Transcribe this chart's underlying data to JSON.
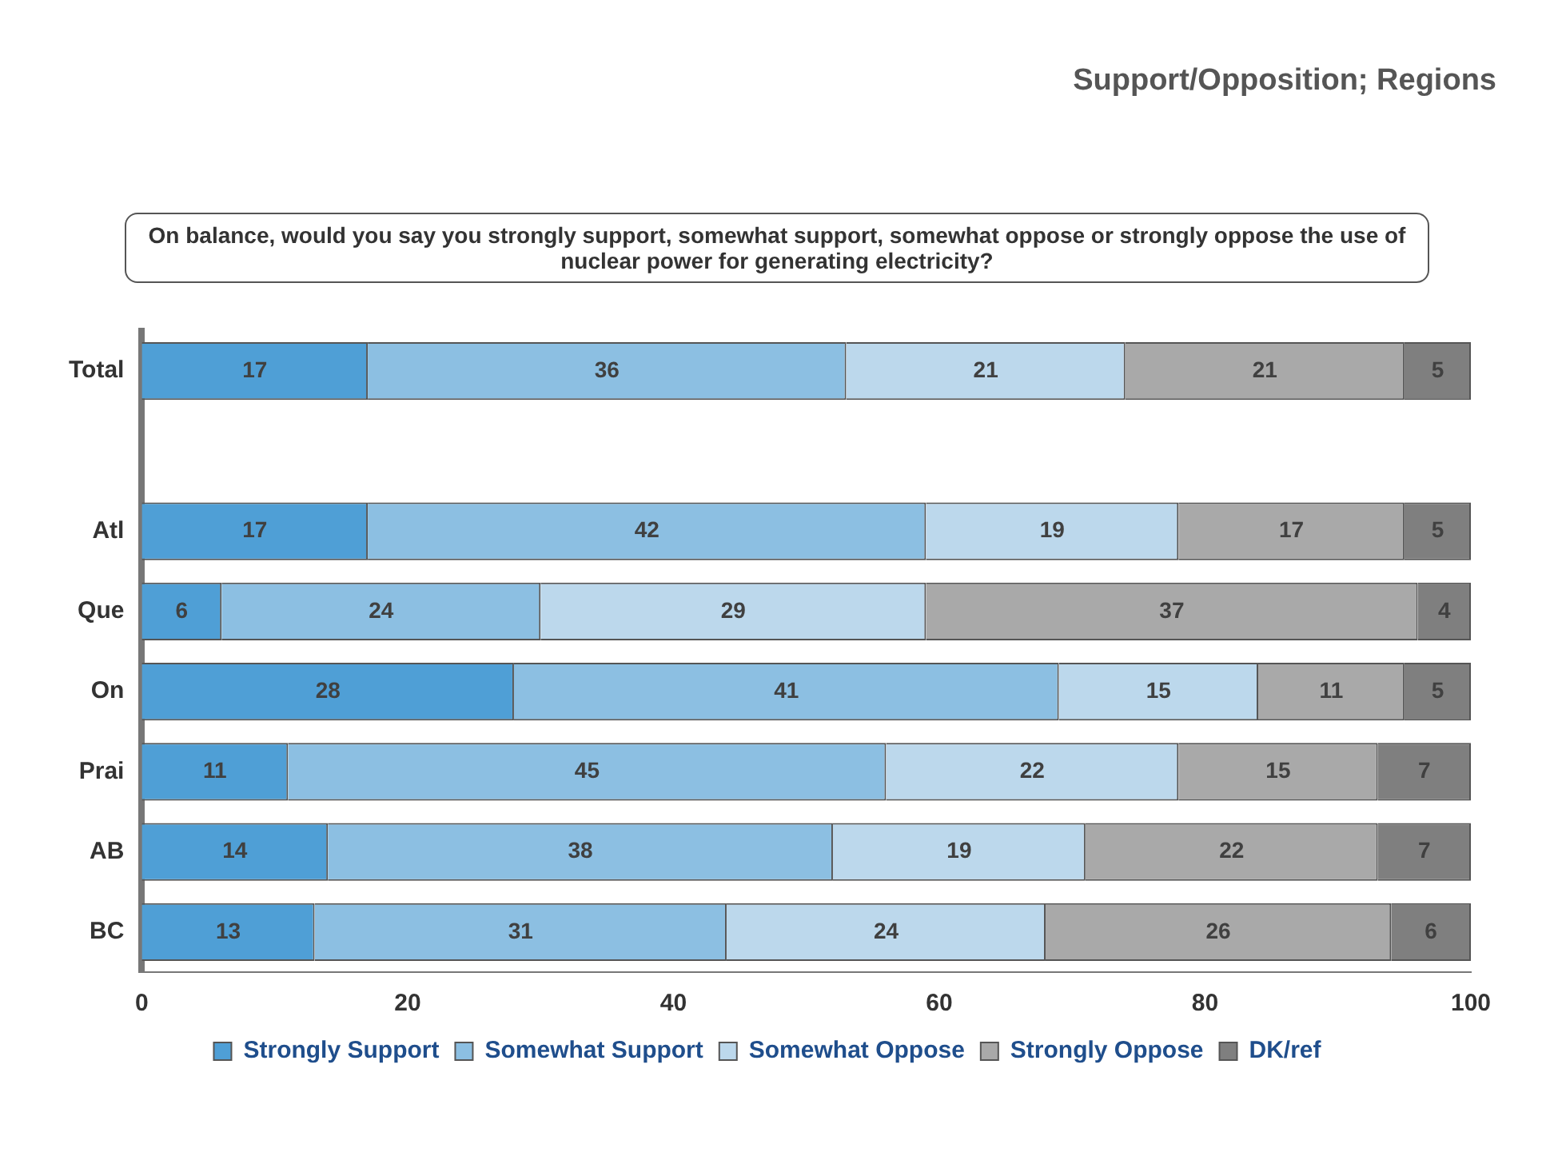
{
  "chart_data": {
    "type": "bar",
    "title": "Support/Opposition; Regions",
    "subtitle": "On balance, would you say you strongly support, somewhat support, somewhat oppose or strongly oppose the use of nuclear power for generating electricity?",
    "orientation": "horizontal",
    "stacked": true,
    "categories": [
      "Total",
      null,
      "Atl",
      "Que",
      "On",
      "Prai",
      "AB",
      "BC"
    ],
    "series": [
      {
        "name": "Strongly Support",
        "color": "#4f9fd6",
        "values": [
          17,
          null,
          17,
          6,
          28,
          11,
          14,
          13
        ]
      },
      {
        "name": "Somewhat Support",
        "color": "#8cbfe2",
        "values": [
          36,
          null,
          42,
          24,
          41,
          45,
          38,
          31
        ]
      },
      {
        "name": "Somewhat Oppose",
        "color": "#bcd8ec",
        "values": [
          21,
          null,
          19,
          29,
          15,
          22,
          19,
          24
        ]
      },
      {
        "name": "Strongly Oppose",
        "color": "#a9a9a9",
        "values": [
          21,
          null,
          17,
          37,
          11,
          15,
          22,
          26
        ]
      },
      {
        "name": "DK/ref",
        "color": "#7f7f7f",
        "values": [
          5,
          null,
          5,
          4,
          5,
          7,
          7,
          6
        ]
      }
    ],
    "xlim": [
      0,
      100
    ],
    "xticks": [
      0,
      20,
      40,
      60,
      80,
      100
    ],
    "data_labels": true,
    "legend": "bottom"
  }
}
